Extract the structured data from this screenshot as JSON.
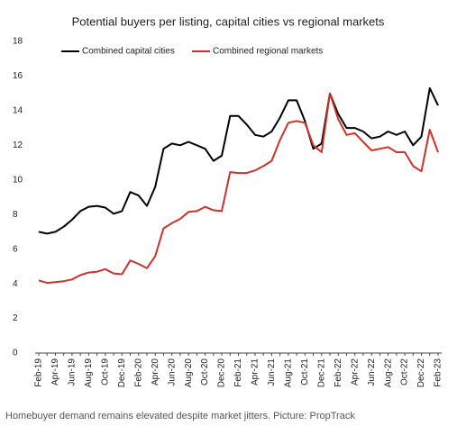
{
  "chart_data": {
    "type": "line",
    "title": "Potential buyers per listing, capital cities vs regional markets",
    "caption": "Homebuyer demand remains elevated despite market jitters. Picture: PropTrack",
    "categories": [
      "Feb-19",
      null,
      "Apr-19",
      null,
      "Jun-19",
      null,
      "Aug-19",
      null,
      "Oct-19",
      null,
      "Dec-19",
      null,
      "Feb-20",
      null,
      "Apr-20",
      null,
      "Jun-20",
      null,
      "Aug-20",
      null,
      "Oct-20",
      null,
      "Dec-20",
      null,
      "Feb-21",
      null,
      "Apr-21",
      null,
      "Jun-21",
      null,
      "Aug-21",
      null,
      "Oct-21",
      null,
      "Dec-21",
      null,
      "Feb-22",
      null,
      "Apr-22",
      null,
      "Jun-22",
      null,
      "Aug-22",
      null,
      "Oct-22",
      null,
      "Dec-22",
      null,
      "Feb-23"
    ],
    "series": [
      {
        "name": "Combined capital cities",
        "color": "#000000",
        "values": [
          7.0,
          6.9,
          7.0,
          7.3,
          7.7,
          8.2,
          8.45,
          8.5,
          8.4,
          8.05,
          8.2,
          9.3,
          9.1,
          8.5,
          9.6,
          11.8,
          12.1,
          12.0,
          12.2,
          12.0,
          11.8,
          11.1,
          11.4,
          13.7,
          13.7,
          13.2,
          12.6,
          12.5,
          12.8,
          13.6,
          14.6,
          14.6,
          13.4,
          11.8,
          12.1,
          15.0,
          13.8,
          13.0,
          13.0,
          12.8,
          12.4,
          12.5,
          12.8,
          12.6,
          12.8,
          12.0,
          12.5,
          15.3,
          14.3
        ]
      },
      {
        "name": "Combined regional markets",
        "color": "#d0302a",
        "values": [
          4.2,
          4.05,
          4.1,
          4.15,
          4.25,
          4.5,
          4.65,
          4.7,
          4.85,
          4.6,
          4.55,
          5.35,
          5.15,
          4.9,
          5.6,
          7.2,
          7.5,
          7.75,
          8.15,
          8.2,
          8.45,
          8.25,
          8.2,
          10.45,
          10.4,
          10.4,
          10.55,
          10.8,
          11.1,
          12.3,
          13.3,
          13.4,
          13.3,
          12.0,
          11.6,
          15.0,
          13.5,
          12.6,
          12.7,
          12.2,
          11.7,
          11.8,
          11.9,
          11.6,
          11.6,
          10.8,
          10.5,
          12.9,
          11.6
        ]
      }
    ],
    "ylim": [
      0,
      18
    ],
    "yticks": [
      0,
      2,
      4,
      6,
      8,
      10,
      12,
      14,
      16,
      18
    ],
    "grid": false
  }
}
